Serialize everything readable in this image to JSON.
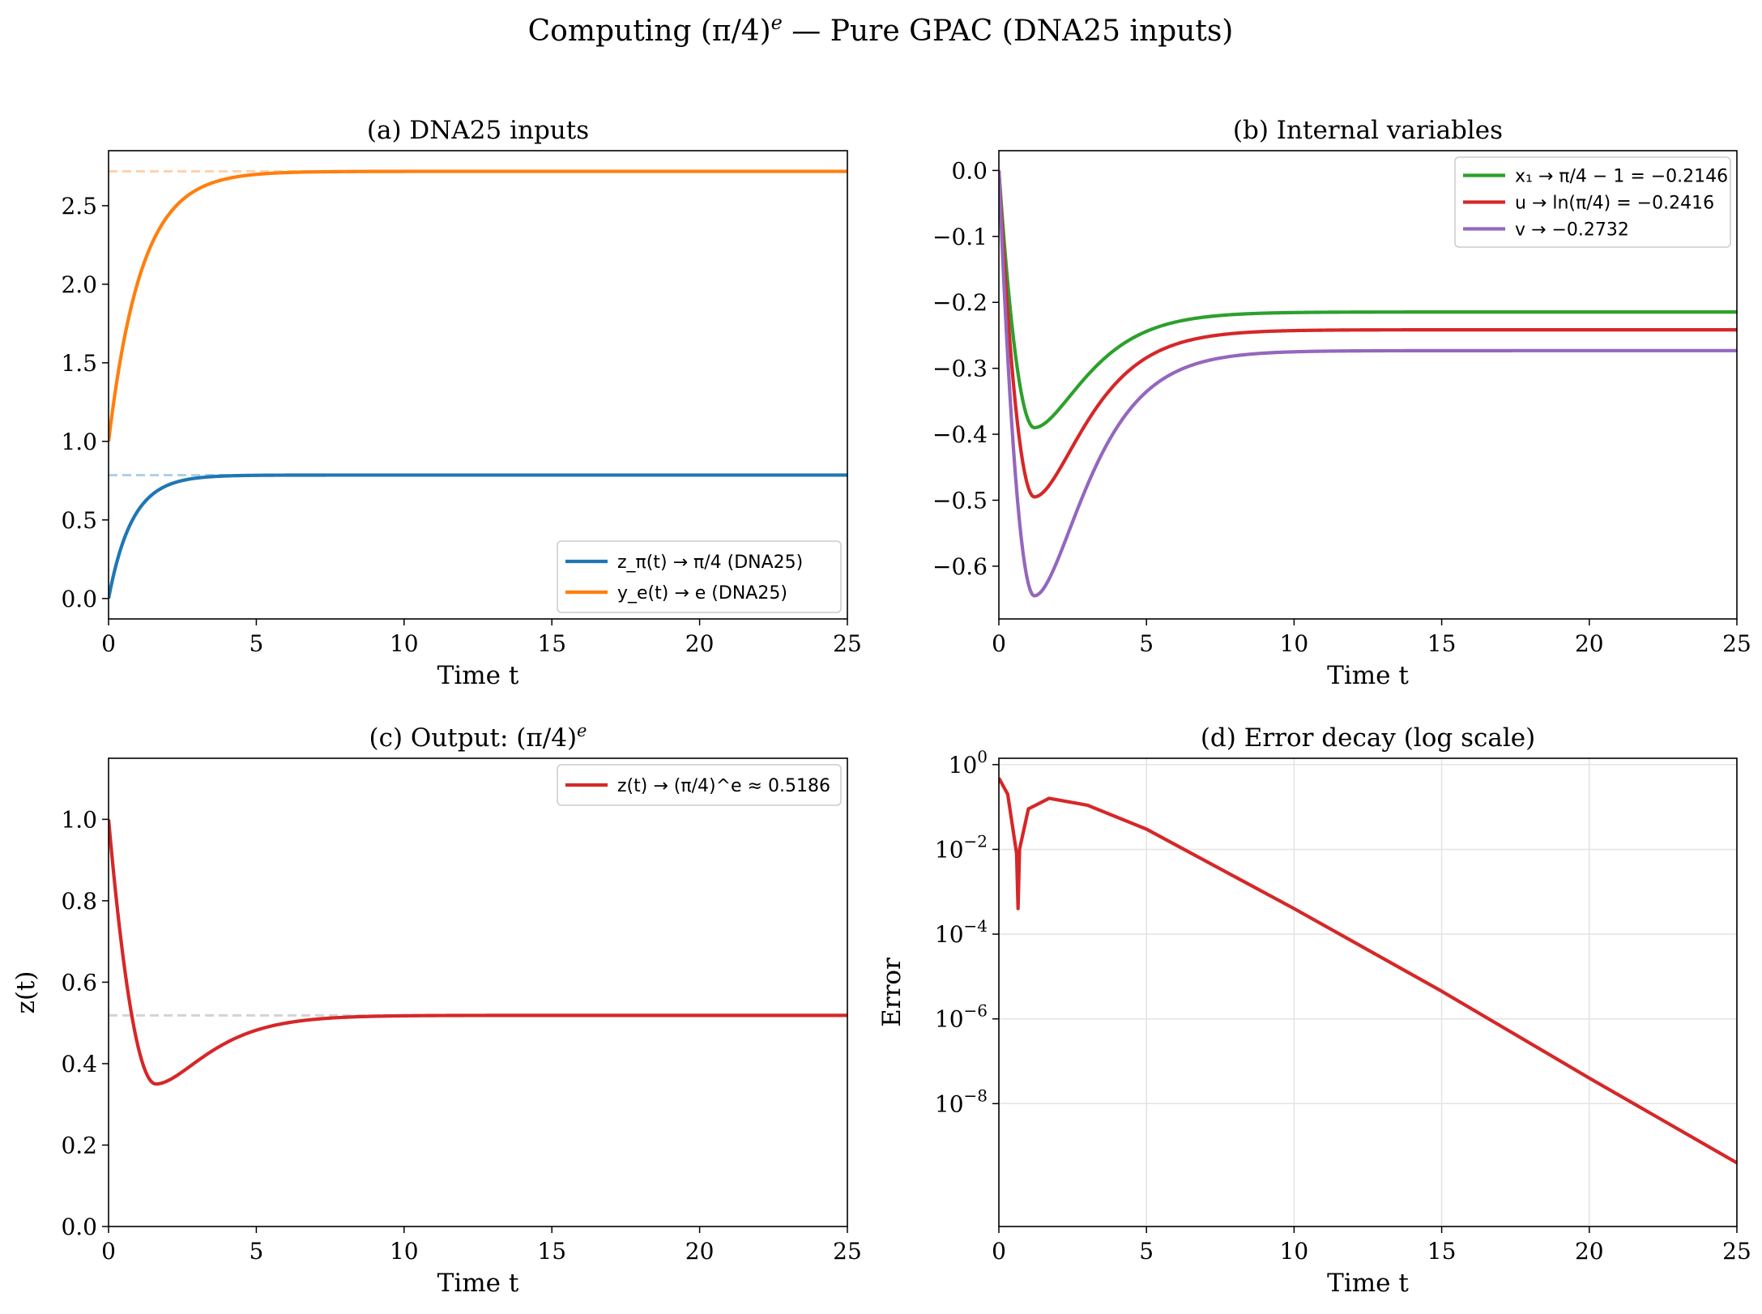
{
  "figure": {
    "title_main": "Computing (π/4)",
    "title_sup": "e",
    "title_rest": " — Pure GPAC (DNA25 inputs)"
  },
  "chart_data": [
    {
      "id": "a",
      "type": "line",
      "title": "(a) DNA25 inputs",
      "xlabel": "Time t",
      "ylabel": "",
      "xlim": [
        0,
        25
      ],
      "ylim": [
        -0.13,
        2.85
      ],
      "xticks": [
        0,
        5,
        10,
        15,
        20,
        25
      ],
      "yticks": [
        0.0,
        0.5,
        1.0,
        1.5,
        2.0,
        2.5
      ],
      "ytick_labels": [
        "0.0",
        "0.5",
        "1.0",
        "1.5",
        "2.0",
        "2.5"
      ],
      "grid": false,
      "legend_position": "lower-right",
      "series": [
        {
          "name": "z_π(t) → π/4 (DNA25)",
          "color": "#1f77b4",
          "model": "rise",
          "start": 0.0,
          "target": 0.7854,
          "rate": 1.25,
          "x": [
            0,
            1,
            2,
            3,
            5,
            10,
            25
          ],
          "y": [
            0.0,
            0.56,
            0.72,
            0.77,
            0.785,
            0.785,
            0.785
          ]
        },
        {
          "name": "y_e(t) → e (DNA25)",
          "color": "#ff7f0e",
          "model": "rise",
          "start": 1.0,
          "target": 2.7183,
          "rate": 0.9,
          "x": [
            0,
            1,
            2,
            3,
            5,
            10,
            25
          ],
          "y": [
            1.0,
            2.02,
            2.44,
            2.61,
            2.7,
            2.718,
            2.718
          ]
        }
      ],
      "reference_lines": [
        {
          "y": 0.7854,
          "color": "#1f77b4"
        },
        {
          "y": 2.7183,
          "color": "#ff7f0e"
        }
      ]
    },
    {
      "id": "b",
      "type": "line",
      "title": "(b) Internal variables",
      "xlabel": "Time t",
      "ylabel": "",
      "xlim": [
        0,
        25
      ],
      "ylim": [
        -0.68,
        0.03
      ],
      "xticks": [
        0,
        5,
        10,
        15,
        20,
        25
      ],
      "yticks": [
        0.0,
        -0.1,
        -0.2,
        -0.3,
        -0.4,
        -0.5,
        -0.6
      ],
      "ytick_labels": [
        "0.0",
        "−0.1",
        "−0.2",
        "−0.3",
        "−0.4",
        "−0.5",
        "−0.6"
      ],
      "grid": false,
      "legend_position": "upper-right",
      "series": [
        {
          "name": "x₁ → π/4 − 1 = −0.2146",
          "color": "#2ca02c",
          "model": "dip",
          "final": -0.2146,
          "min": -0.39,
          "tmin": 1.2,
          "x": [
            0,
            1.2,
            3,
            6,
            25
          ],
          "y": [
            0.0,
            -0.39,
            -0.3,
            -0.225,
            -0.2146
          ]
        },
        {
          "name": "u → ln(π/4) = −0.2416",
          "color": "#d62728",
          "model": "dip",
          "final": -0.2416,
          "min": -0.495,
          "tmin": 1.2,
          "x": [
            0,
            1.2,
            3,
            6,
            25
          ],
          "y": [
            0.0,
            -0.495,
            -0.36,
            -0.255,
            -0.2416
          ]
        },
        {
          "name": "v → −0.2732",
          "color": "#9467bd",
          "model": "dip",
          "final": -0.2732,
          "min": -0.645,
          "tmin": 1.2,
          "x": [
            0,
            1.2,
            3,
            6,
            25
          ],
          "y": [
            0.0,
            -0.645,
            -0.42,
            -0.29,
            -0.2732
          ]
        }
      ]
    },
    {
      "id": "c",
      "type": "line",
      "title_main": "(c) Output: (π/4)",
      "title_sup": "e",
      "xlabel": "Time t",
      "ylabel": "z(t)",
      "xlim": [
        0,
        25
      ],
      "ylim": [
        0.0,
        1.15
      ],
      "xticks": [
        0,
        5,
        10,
        15,
        20,
        25
      ],
      "yticks": [
        0.0,
        0.2,
        0.4,
        0.6,
        0.8,
        1.0
      ],
      "ytick_labels": [
        "0.0",
        "0.2",
        "0.4",
        "0.6",
        "0.8",
        "1.0"
      ],
      "grid": false,
      "legend_position": "upper-right",
      "series": [
        {
          "name": "z(t) → (π/4)^e ≈ 0.5186",
          "color": "#d62728",
          "model": "dip",
          "start": 1.0,
          "final": 0.5186,
          "min": 0.35,
          "tmin": 1.6,
          "x": [
            0,
            1.6,
            4,
            8,
            25
          ],
          "y": [
            1.0,
            0.35,
            0.46,
            0.515,
            0.5186
          ]
        }
      ],
      "reference_lines": [
        {
          "y": 0.5186,
          "color": "#808080"
        }
      ]
    },
    {
      "id": "d",
      "type": "line",
      "title": "(d) Error decay (log scale)",
      "xlabel": "Time t",
      "ylabel": "Error",
      "xlim": [
        0,
        25
      ],
      "ylim_log10": [
        -10.9,
        0.15
      ],
      "scale": "log",
      "xticks": [
        0,
        5,
        10,
        15,
        20,
        25
      ],
      "yticks_exp": [
        0,
        -2,
        -4,
        -6,
        -8
      ],
      "ytick_base": "10",
      "grid": true,
      "series": [
        {
          "name": "",
          "color": "#d62728",
          "x": [
            0,
            0.3,
            0.6,
            0.65,
            0.7,
            1.0,
            1.7,
            3.0,
            5.0,
            10.0,
            15.0,
            20.0,
            25.0
          ],
          "y": [
            0.48,
            0.2,
            0.008,
            0.0004,
            0.01,
            0.09,
            0.16,
            0.11,
            0.03,
            0.0004,
            4.5e-06,
            4e-08,
            4e-10
          ]
        }
      ]
    }
  ]
}
